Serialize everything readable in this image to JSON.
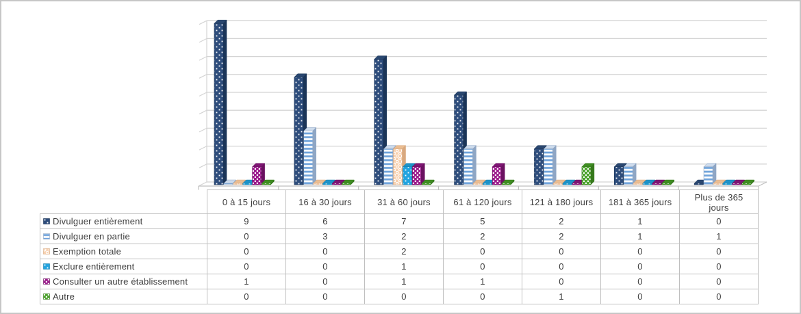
{
  "chart_data": {
    "type": "bar",
    "style": "3d-column-clustered",
    "title": "",
    "xlabel": "",
    "ylabel": "",
    "ylim": [
      0,
      9
    ],
    "gridline_step": 1,
    "grid": true,
    "legend_position": "data-table-left",
    "categories": [
      "0 à 15 jours",
      "16 à 30 jours",
      "31 à 60 jours",
      "61 à 120 jours",
      "121 à 180 jours",
      "181 à 365 jours",
      "Plus de 365 jours"
    ],
    "series": [
      {
        "name": "Divulguer entièrement",
        "values": [
          9,
          6,
          7,
          5,
          2,
          1,
          0
        ],
        "face": "#2e4d7c",
        "side": "#1b3558",
        "top": "#2a4770",
        "pattern": "dots",
        "pattern_fg": "#ffffff"
      },
      {
        "name": "Divulguer en partie",
        "values": [
          0,
          3,
          2,
          2,
          2,
          1,
          1
        ],
        "face": "#ffffff",
        "side": "#8fa6c4",
        "top": "#cddbec",
        "pattern": "hstripes",
        "pattern_fg": "#6fa3db"
      },
      {
        "name": "Exemption totale",
        "values": [
          0,
          0,
          2,
          0,
          0,
          0,
          0
        ],
        "face": "#f8d0ae",
        "side": "#d8a87e",
        "top": "#eabd92",
        "pattern": "circles",
        "pattern_fg": "#ffffff"
      },
      {
        "name": "Exclure entièrement",
        "values": [
          0,
          0,
          1,
          0,
          0,
          0,
          0
        ],
        "face": "#22a4e0",
        "side": "#177ca9",
        "top": "#1e93c9",
        "pattern": "dots",
        "pattern_fg": "#ffffff"
      },
      {
        "name": "Consulter un autre établissement",
        "values": [
          1,
          0,
          1,
          1,
          0,
          0,
          0
        ],
        "face": "#9c1a8c",
        "side": "#6b1160",
        "top": "#7e1573",
        "pattern": "checker",
        "pattern_fg": "#ffffff"
      },
      {
        "name": "Autre",
        "values": [
          0,
          0,
          0,
          0,
          1,
          0,
          0
        ],
        "face": "#4ba32c",
        "side": "#36791c",
        "top": "#3f8d22",
        "pattern": "checker",
        "pattern_fg": "#ffffff"
      }
    ],
    "gridline_color": "#d4d4d4",
    "axis_tick_color": "#bfbfbf",
    "table_border_color": "#bfbfbf",
    "table_text_color": "#3d3d3d"
  }
}
